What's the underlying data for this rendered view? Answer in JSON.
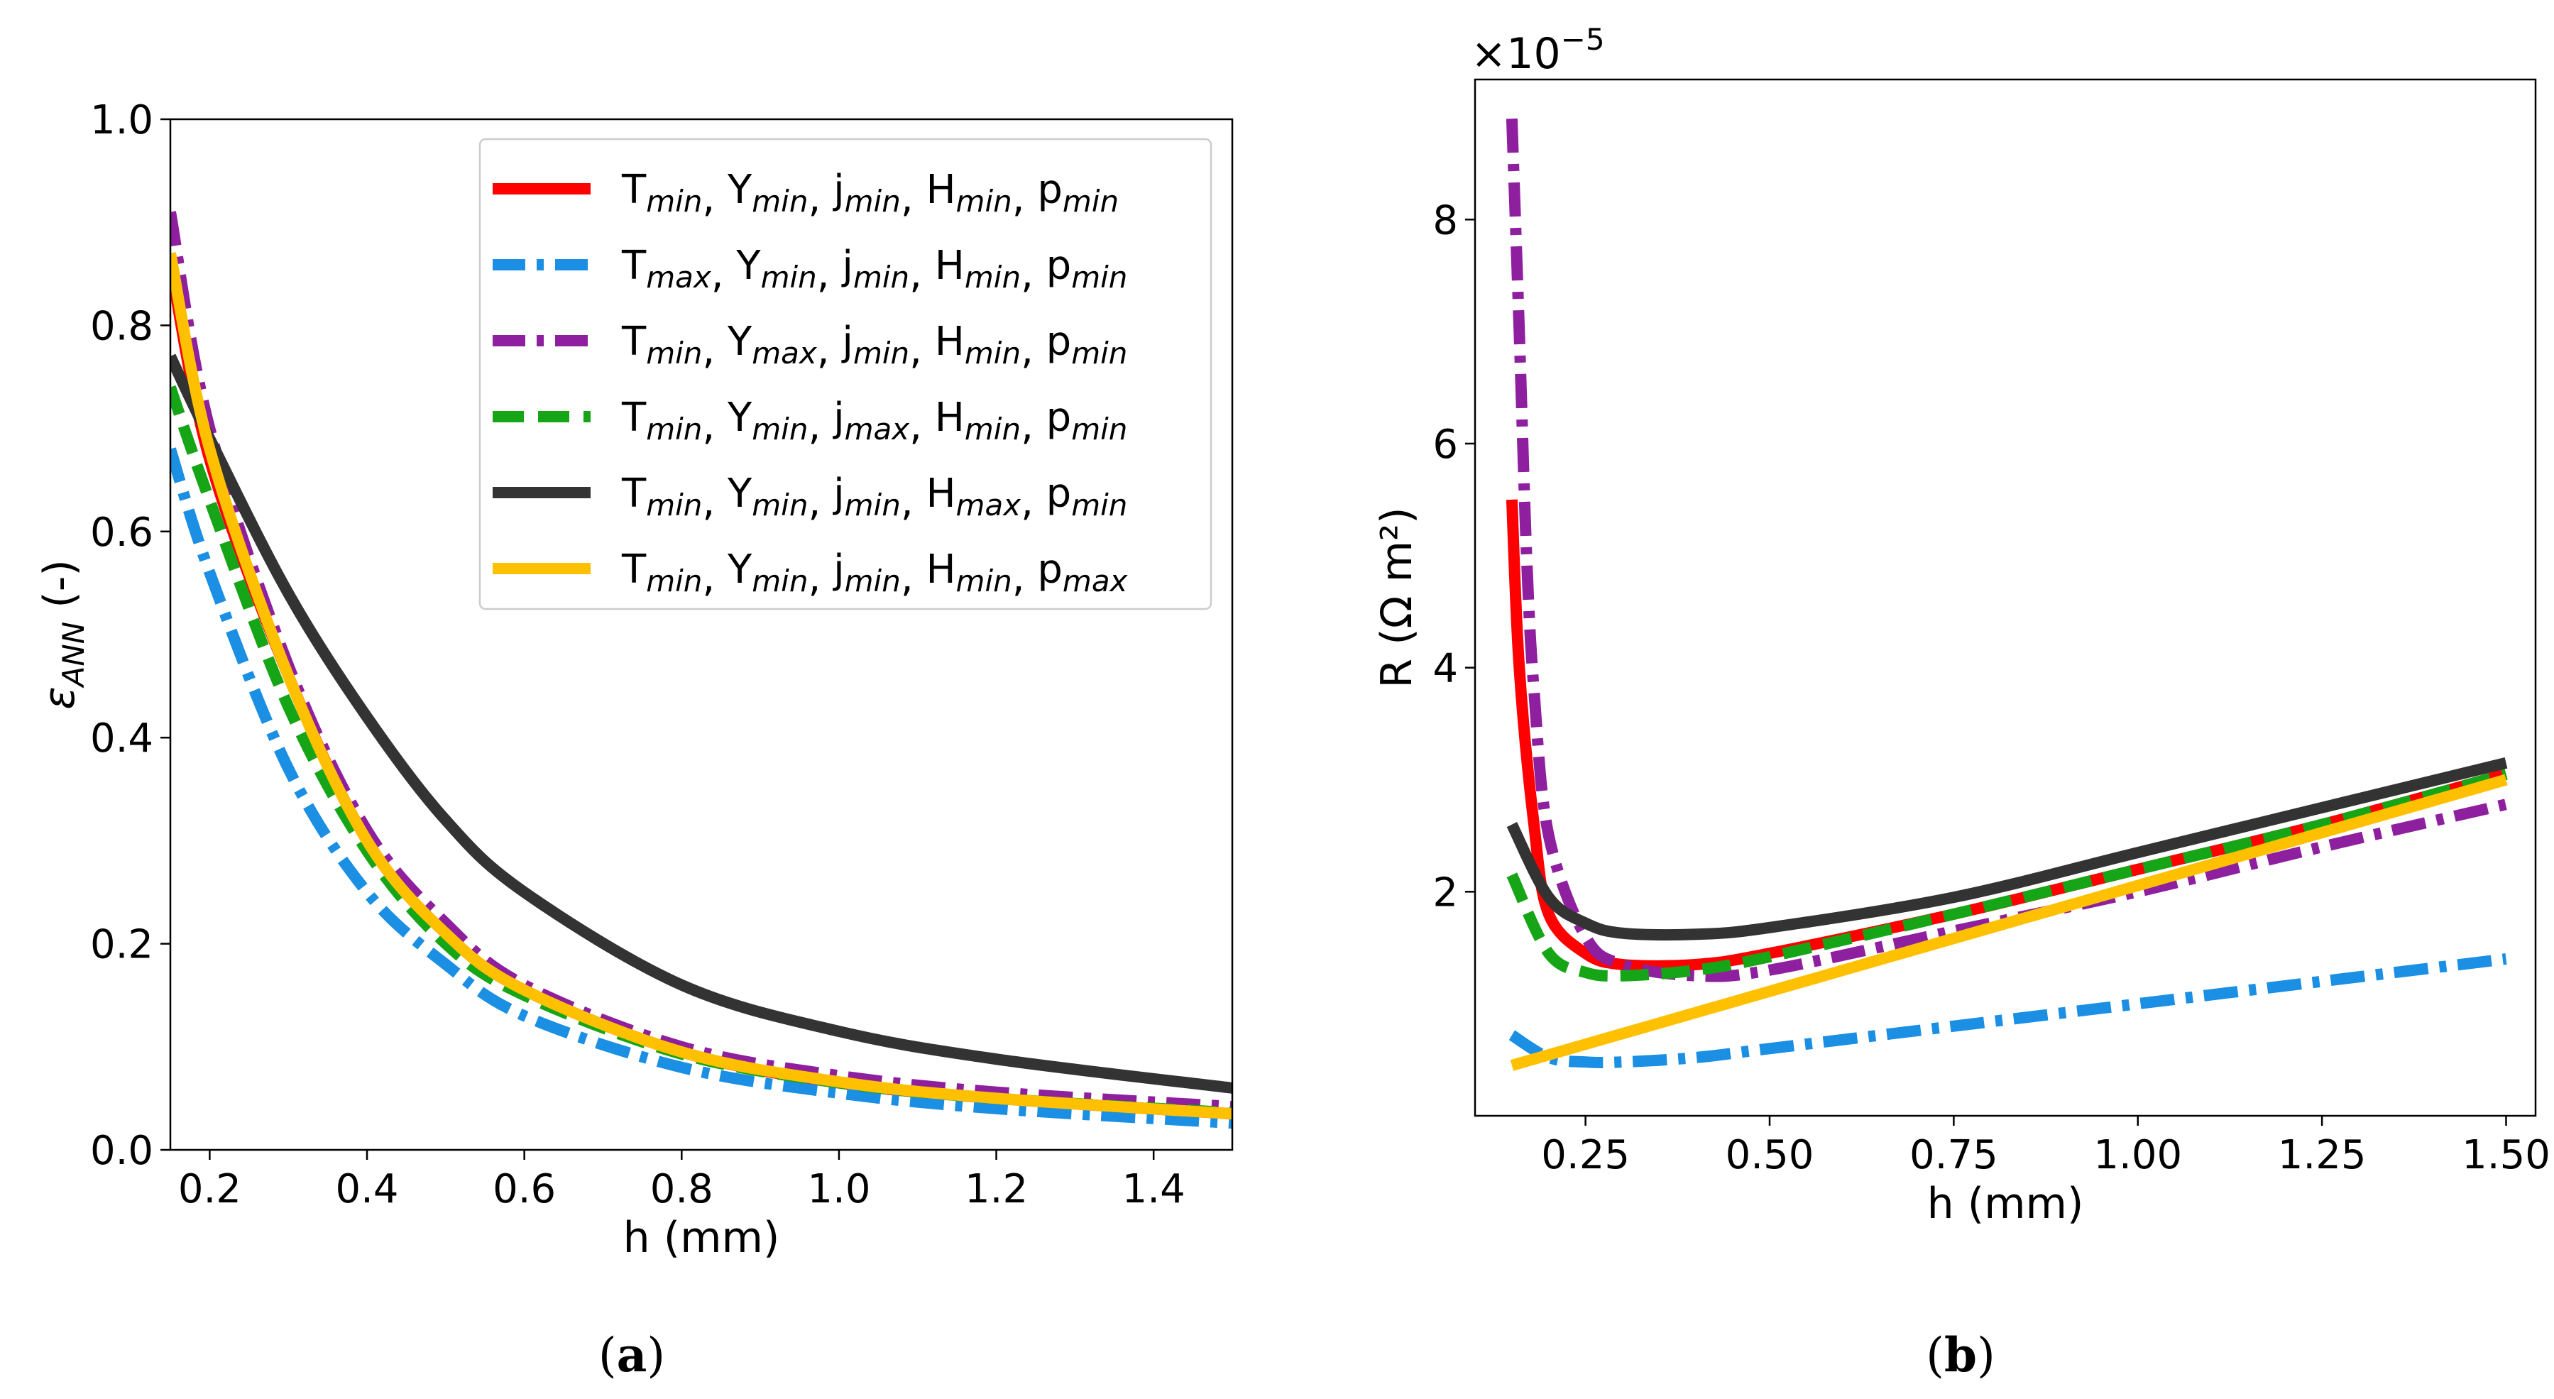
{
  "chart_data": [
    {
      "panel": "(a)",
      "panel_bold": "a",
      "type": "line",
      "xlabel": "h (mm)",
      "ylabel": "ε_ANN (-)",
      "ylabel_symbol": "ε",
      "ylabel_sub": "ANN",
      "ylabel_rest": " (-)",
      "xlim": [
        0.15,
        1.5
      ],
      "ylim": [
        0.0,
        1.0
      ],
      "xticks": [
        0.2,
        0.4,
        0.6,
        0.8,
        1.0,
        1.2,
        1.4
      ],
      "xtick_labels": [
        "0.2",
        "0.4",
        "0.6",
        "0.8",
        "1.0",
        "1.2",
        "1.4"
      ],
      "yticks": [
        0.0,
        0.2,
        0.4,
        0.6,
        0.8,
        1.0
      ],
      "ytick_labels": [
        "0.0",
        "0.2",
        "0.4",
        "0.6",
        "0.8",
        "1.0"
      ],
      "legend_location": "upper right",
      "series": [
        {
          "name": "Tmin, Ymin, jmin, Hmin, pmin",
          "color": "#ff0000",
          "style": "solid",
          "x": [
            0.15,
            0.2,
            0.3,
            0.4,
            0.5,
            0.6,
            0.8,
            1.0,
            1.2,
            1.5
          ],
          "y": [
            0.86,
            0.67,
            0.46,
            0.3,
            0.21,
            0.155,
            0.095,
            0.065,
            0.05,
            0.035
          ]
        },
        {
          "name": "Tmax, Ymin, jmin, Hmin, pmin",
          "color": "#1a8fe3",
          "style": "dashdot",
          "x": [
            0.15,
            0.2,
            0.3,
            0.4,
            0.5,
            0.6,
            0.8,
            1.0,
            1.2,
            1.5
          ],
          "y": [
            0.68,
            0.56,
            0.37,
            0.25,
            0.18,
            0.13,
            0.08,
            0.055,
            0.04,
            0.026
          ]
        },
        {
          "name": "Tmin, Ymax, jmin, Hmin, pmin",
          "color": "#8e1f9e",
          "style": "dashdot",
          "x": [
            0.15,
            0.2,
            0.3,
            0.4,
            0.5,
            0.6,
            0.8,
            1.0,
            1.2,
            1.5
          ],
          "y": [
            0.91,
            0.7,
            0.47,
            0.31,
            0.22,
            0.16,
            0.1,
            0.072,
            0.056,
            0.042
          ]
        },
        {
          "name": "Tmin, Ymin, jmax, Hmin, pmin",
          "color": "#16a516",
          "style": "dashed",
          "x": [
            0.15,
            0.2,
            0.3,
            0.4,
            0.5,
            0.6,
            0.8,
            1.0,
            1.2,
            1.5
          ],
          "y": [
            0.74,
            0.63,
            0.43,
            0.29,
            0.2,
            0.15,
            0.093,
            0.065,
            0.05,
            0.036
          ]
        },
        {
          "name": "Tmin, Ymin, jmin, Hmax, pmin",
          "color": "#333333",
          "style": "solid",
          "x": [
            0.15,
            0.2,
            0.3,
            0.4,
            0.5,
            0.6,
            0.8,
            1.0,
            1.2,
            1.5
          ],
          "y": [
            0.77,
            0.69,
            0.54,
            0.42,
            0.32,
            0.25,
            0.16,
            0.115,
            0.088,
            0.06
          ]
        },
        {
          "name": "Tmin, Ymin, jmin, Hmin, pmax",
          "color": "#ffc000",
          "style": "solid",
          "x": [
            0.15,
            0.2,
            0.3,
            0.4,
            0.5,
            0.6,
            0.8,
            1.0,
            1.2,
            1.5
          ],
          "y": [
            0.87,
            0.68,
            0.46,
            0.3,
            0.21,
            0.155,
            0.095,
            0.066,
            0.05,
            0.035
          ]
        }
      ],
      "legend": [
        {
          "color": "#ff0000",
          "style": "solid",
          "parts": [
            [
              "T",
              "min"
            ],
            [
              "Y",
              "min"
            ],
            [
              "j",
              "min"
            ],
            [
              "H",
              "min"
            ],
            [
              "p",
              "min"
            ]
          ]
        },
        {
          "color": "#1a8fe3",
          "style": "dashdot",
          "parts": [
            [
              "T",
              "max"
            ],
            [
              "Y",
              "min"
            ],
            [
              "j",
              "min"
            ],
            [
              "H",
              "min"
            ],
            [
              "p",
              "min"
            ]
          ]
        },
        {
          "color": "#8e1f9e",
          "style": "dashdot",
          "parts": [
            [
              "T",
              "min"
            ],
            [
              "Y",
              "max"
            ],
            [
              "j",
              "min"
            ],
            [
              "H",
              "min"
            ],
            [
              "p",
              "min"
            ]
          ]
        },
        {
          "color": "#16a516",
          "style": "dashed",
          "parts": [
            [
              "T",
              "min"
            ],
            [
              "Y",
              "min"
            ],
            [
              "j",
              "max"
            ],
            [
              "H",
              "min"
            ],
            [
              "p",
              "min"
            ]
          ]
        },
        {
          "color": "#333333",
          "style": "solid",
          "parts": [
            [
              "T",
              "min"
            ],
            [
              "Y",
              "min"
            ],
            [
              "j",
              "min"
            ],
            [
              "H",
              "max"
            ],
            [
              "p",
              "min"
            ]
          ]
        },
        {
          "color": "#ffc000",
          "style": "solid",
          "parts": [
            [
              "T",
              "min"
            ],
            [
              "Y",
              "min"
            ],
            [
              "j",
              "min"
            ],
            [
              "H",
              "min"
            ],
            [
              "p",
              "max"
            ]
          ]
        }
      ]
    },
    {
      "panel": "(b)",
      "panel_bold": "b",
      "type": "line",
      "xlabel": "h (mm)",
      "ylabel": "R (Ω m²)",
      "scale_label": "×10",
      "scale_exp": "−5",
      "xlim": [
        0.1,
        1.54
      ],
      "ylim": [
        0.0,
        9.25
      ],
      "xticks": [
        0.25,
        0.5,
        0.75,
        1.0,
        1.25,
        1.5
      ],
      "xtick_labels": [
        "0.25",
        "0.50",
        "0.75",
        "1.00",
        "1.25",
        "1.50"
      ],
      "yticks": [
        2,
        4,
        6,
        8
      ],
      "ytick_labels": [
        "2",
        "4",
        "6",
        "8"
      ],
      "units_multiplier": "1e-5",
      "series": [
        {
          "name": "Tmin, Ymin, jmin, Hmin, pmin",
          "color": "#ff0000",
          "style": "solid",
          "x": [
            0.15,
            0.16,
            0.18,
            0.2,
            0.25,
            0.3,
            0.4,
            0.5,
            0.75,
            1.0,
            1.25,
            1.5
          ],
          "y": [
            5.5,
            4.0,
            2.6,
            1.8,
            1.45,
            1.35,
            1.35,
            1.45,
            1.8,
            2.2,
            2.6,
            3.05
          ]
        },
        {
          "name": "Tmax, Ymin, jmin, Hmin, pmin",
          "color": "#1a8fe3",
          "style": "dashdot",
          "x": [
            0.15,
            0.2,
            0.25,
            0.3,
            0.4,
            0.5,
            0.75,
            1.0,
            1.25,
            1.5
          ],
          "y": [
            0.72,
            0.52,
            0.48,
            0.48,
            0.52,
            0.6,
            0.8,
            1.0,
            1.2,
            1.4
          ]
        },
        {
          "name": "Tmin, Ymax, jmin, Hmin, pmin",
          "color": "#8e1f9e",
          "style": "dashdot",
          "x": [
            0.15,
            0.16,
            0.17,
            0.18,
            0.2,
            0.25,
            0.3,
            0.4,
            0.5,
            0.75,
            1.0,
            1.25,
            1.5
          ],
          "y": [
            8.9,
            7.0,
            5.0,
            3.8,
            2.5,
            1.6,
            1.35,
            1.25,
            1.3,
            1.65,
            2.0,
            2.4,
            2.78
          ]
        },
        {
          "name": "Tmin, Ymin, jmax, Hmin, pmin",
          "color": "#16a516",
          "style": "dashed",
          "x": [
            0.15,
            0.2,
            0.25,
            0.3,
            0.4,
            0.5,
            0.75,
            1.0,
            1.25,
            1.5
          ],
          "y": [
            2.15,
            1.45,
            1.28,
            1.25,
            1.3,
            1.42,
            1.8,
            2.2,
            2.6,
            3.05
          ]
        },
        {
          "name": "Tmin, Ymin, jmin, Hmax, pmin",
          "color": "#333333",
          "style": "solid",
          "x": [
            0.15,
            0.2,
            0.25,
            0.3,
            0.4,
            0.5,
            0.75,
            1.0,
            1.25,
            1.5
          ],
          "y": [
            2.6,
            1.95,
            1.72,
            1.63,
            1.62,
            1.68,
            1.95,
            2.35,
            2.75,
            3.15
          ]
        },
        {
          "name": "Tmin, Ymin, jmin, Hmin, pmax",
          "color": "#ffc000",
          "style": "solid",
          "x": [
            0.15,
            1.5
          ],
          "y": [
            0.45,
            3.0
          ]
        }
      ]
    }
  ]
}
